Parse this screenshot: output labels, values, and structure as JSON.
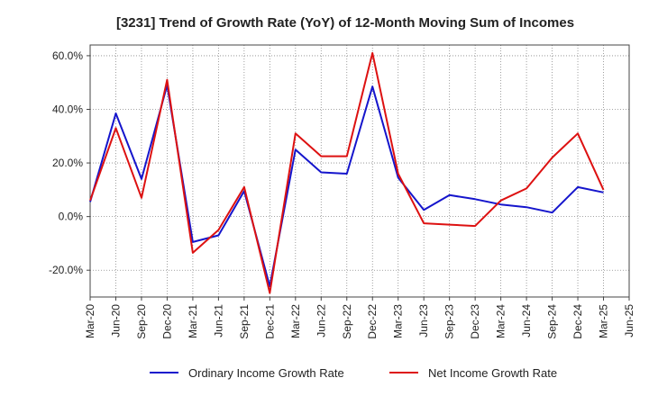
{
  "chart_data": {
    "type": "line",
    "title": "[3231]  Trend of Growth Rate (YoY) of 12-Month Moving Sum of Incomes",
    "xlabel": "",
    "ylabel": "",
    "ylim": [
      -30,
      64
    ],
    "yticks": [
      60,
      40,
      20,
      0,
      -20
    ],
    "ytick_labels": [
      "60.0%",
      "40.0%",
      "20.0%",
      "0.0%",
      "-20.0%"
    ],
    "x": [
      "Mar-20",
      "Jun-20",
      "Sep-20",
      "Dec-20",
      "Mar-21",
      "Jun-21",
      "Sep-21",
      "Dec-21",
      "Mar-22",
      "Jun-22",
      "Sep-22",
      "Dec-22",
      "Mar-23",
      "Jun-23",
      "Sep-23",
      "Dec-23",
      "Mar-24",
      "Jun-24",
      "Sep-24",
      "Dec-24",
      "Mar-25",
      "Jun-25"
    ],
    "grid": true,
    "legend_position": "bottom",
    "series": [
      {
        "name": "Ordinary Income Growth Rate",
        "color": "#1515cc",
        "values": [
          5.5,
          38.5,
          14.0,
          49.0,
          -9.5,
          -7.0,
          9.5,
          -26.0,
          25.0,
          16.5,
          16.0,
          48.5,
          14.5,
          2.5,
          8.0,
          6.5,
          4.5,
          3.5,
          1.5,
          11.0,
          9.0,
          null
        ]
      },
      {
        "name": "Net Income Growth Rate",
        "color": "#dd1111",
        "values": [
          6.0,
          33.0,
          7.0,
          51.0,
          -13.5,
          -5.0,
          11.0,
          -28.5,
          31.0,
          22.5,
          22.5,
          61.0,
          16.0,
          -2.5,
          -3.0,
          -3.5,
          6.0,
          10.5,
          22.0,
          31.0,
          10.0,
          null
        ]
      }
    ]
  }
}
